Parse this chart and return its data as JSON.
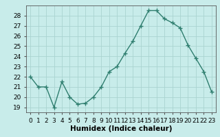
{
  "x": [
    0,
    1,
    2,
    3,
    4,
    5,
    6,
    7,
    8,
    9,
    10,
    11,
    12,
    13,
    14,
    15,
    16,
    17,
    18,
    19,
    20,
    21,
    22,
    23
  ],
  "y": [
    22.0,
    21.0,
    21.0,
    19.0,
    21.5,
    20.0,
    19.3,
    19.4,
    20.0,
    21.0,
    22.5,
    23.0,
    24.3,
    25.5,
    27.0,
    28.5,
    28.5,
    27.7,
    27.3,
    26.8,
    25.1,
    23.8,
    22.5,
    20.5
  ],
  "line_color": "#2e7d6e",
  "marker": "+",
  "marker_size": 4,
  "bg_color": "#c8ecea",
  "grid_color": "#aad4d0",
  "xlabel": "Humidex (Indice chaleur)",
  "xlim": [
    -0.5,
    23.5
  ],
  "ylim": [
    18.5,
    29.0
  ],
  "yticks": [
    19,
    20,
    21,
    22,
    23,
    24,
    25,
    26,
    27,
    28
  ],
  "xticks": [
    0,
    1,
    2,
    3,
    4,
    5,
    6,
    7,
    8,
    9,
    10,
    11,
    12,
    13,
    14,
    15,
    16,
    17,
    18,
    19,
    20,
    21,
    22,
    23
  ],
  "tick_fontsize": 6.5,
  "xlabel_fontsize": 7.5,
  "line_width": 1.0,
  "marker_edge_width": 1.0
}
